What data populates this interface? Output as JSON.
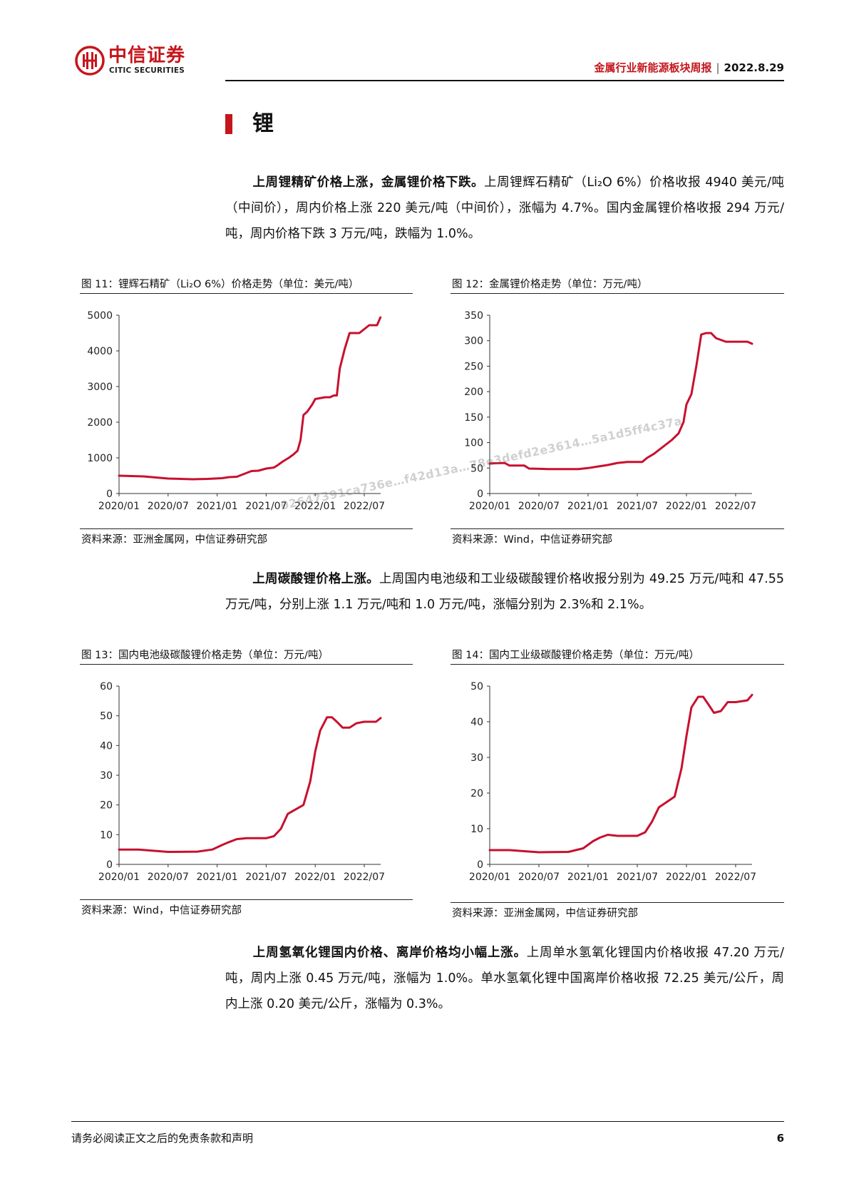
{
  "header": {
    "logo_cn": "中信证券",
    "logo_en": "CITIC SECURITIES",
    "report_title": "金属行业新能源板块周报",
    "separator": "|",
    "date": "2022.8.29"
  },
  "section": {
    "title": "锂"
  },
  "paragraphs": [
    {
      "bold": "上周锂精矿价格上涨，金属锂价格下跌。",
      "text": "上周锂辉石精矿（Li₂O 6%）价格收报 4940 美元/吨（中间价），周内价格上涨 220 美元/吨（中间价），涨幅为 4.7%。国内金属锂价格收报 294 万元/吨，周内价格下跌 3 万元/吨，跌幅为 1.0%。"
    },
    {
      "bold": "上周碳酸锂价格上涨。",
      "text": "上周国内电池级和工业级碳酸锂价格收报分别为 49.25 万元/吨和 47.55 万元/吨，分别上涨 1.1 万元/吨和 1.0 万元/吨，涨幅分别为 2.3%和 2.1%。"
    },
    {
      "bold": "上周氢氧化锂国内价格、离岸价格均小幅上涨。",
      "text": "上周单水氢氧化锂国内价格收报 47.20 万元/吨，周内上涨 0.45 万元/吨，涨幅为 1.0%。单水氢氧化锂中国离岸价格收报 72.25 美元/公斤，周内上涨 0.20 美元/公斤，涨幅为 0.3%。"
    }
  ],
  "figures": [
    {
      "title": "图 11：锂辉石精矿（Li₂O 6%）价格走势（单位：美元/吨）",
      "source": "资料来源：亚洲金属网，中信证券研究部"
    },
    {
      "title": "图 12：金属锂价格走势（单位：万元/吨）",
      "source": "资料来源：Wind，中信证券研究部"
    },
    {
      "title": "图 13：国内电池级碳酸锂价格走势（单位：万元/吨）",
      "source": "资料来源：Wind，中信证券研究部"
    },
    {
      "title": "图 14：国内工业级碳酸锂价格走势（单位：万元/吨）",
      "source": "资料来源：亚洲金属网，中信证券研究部"
    }
  ],
  "watermark": "02647391ca736e…f42d13a…78e3defd2e3614…5a1d5ff4c37a",
  "footer": {
    "disclaimer": "请务必阅读正文之后的免责条款和声明",
    "page": "6"
  },
  "colors": {
    "brand_red": "#c4161c",
    "line": "#c8102e"
  },
  "chart_data": [
    {
      "type": "line",
      "x_labels": [
        "2020/01",
        "2020/07",
        "2021/01",
        "2021/07",
        "2022/01",
        "2022/07"
      ],
      "y_ticks": [
        0,
        1000,
        2000,
        3000,
        4000,
        5000
      ],
      "ylim": [
        0,
        5000
      ],
      "xlim": [
        2020.0,
        2022.667
      ],
      "series": [
        {
          "x": [
            2020.0,
            2020.25,
            2020.5,
            2020.75,
            2020.9,
            2021.05,
            2021.12,
            2021.2,
            2021.35,
            2021.42,
            2021.5,
            2021.58,
            2021.62,
            2021.67,
            2021.73,
            2021.78,
            2021.82,
            2021.85,
            2021.88,
            2021.92,
            2021.97,
            2022.0,
            2022.1,
            2022.15,
            2022.19,
            2022.22,
            2022.25,
            2022.3,
            2022.35,
            2022.4,
            2022.45,
            2022.55,
            2022.63,
            2022.665
          ],
          "y": [
            500,
            480,
            420,
            400,
            410,
            430,
            460,
            470,
            630,
            640,
            700,
            730,
            800,
            900,
            1000,
            1100,
            1200,
            1500,
            2200,
            2300,
            2500,
            2650,
            2700,
            2700,
            2750,
            2750,
            3500,
            4050,
            4500,
            4500,
            4500,
            4720,
            4720,
            4940
          ]
        }
      ]
    },
    {
      "type": "line",
      "x_labels": [
        "2020/01",
        "2020/07",
        "2021/01",
        "2021/07",
        "2022/01",
        "2022/07"
      ],
      "y_ticks": [
        0,
        50,
        100,
        150,
        200,
        250,
        300,
        350
      ],
      "ylim": [
        0,
        350
      ],
      "xlim": [
        2020.0,
        2022.667
      ],
      "series": [
        {
          "x": [
            2020.0,
            2020.15,
            2020.2,
            2020.35,
            2020.4,
            2020.6,
            2020.9,
            2021.0,
            2021.1,
            2021.2,
            2021.3,
            2021.4,
            2021.55,
            2021.6,
            2021.67,
            2021.75,
            2021.85,
            2021.92,
            2021.97,
            2022.0,
            2022.05,
            2022.1,
            2022.15,
            2022.2,
            2022.25,
            2022.3,
            2022.4,
            2022.5,
            2022.62,
            2022.667
          ],
          "y": [
            59,
            60,
            55,
            55,
            49,
            48,
            48,
            50,
            53,
            56,
            60,
            62,
            62,
            70,
            78,
            90,
            105,
            118,
            140,
            175,
            195,
            250,
            312,
            315,
            315,
            305,
            298,
            298,
            298,
            294
          ]
        }
      ]
    },
    {
      "type": "line",
      "x_labels": [
        "2020/01",
        "2020/07",
        "2021/01",
        "2021/07",
        "2022/01",
        "2022/07"
      ],
      "y_ticks": [
        0,
        10,
        20,
        30,
        40,
        50,
        60
      ],
      "ylim": [
        0,
        60
      ],
      "xlim": [
        2020.0,
        2022.667
      ],
      "series": [
        {
          "x": [
            2020.0,
            2020.2,
            2020.5,
            2020.8,
            2020.95,
            2021.05,
            2021.12,
            2021.2,
            2021.3,
            2021.5,
            2021.58,
            2021.65,
            2021.72,
            2021.8,
            2021.88,
            2021.95,
            2022.0,
            2022.05,
            2022.12,
            2022.17,
            2022.22,
            2022.28,
            2022.35,
            2022.42,
            2022.5,
            2022.62,
            2022.667
          ],
          "y": [
            5.0,
            5.0,
            4.2,
            4.3,
            5.0,
            6.5,
            7.5,
            8.5,
            8.8,
            8.8,
            9.5,
            12,
            17,
            18.5,
            20,
            28,
            38,
            45,
            49.5,
            49.5,
            48,
            46,
            46,
            47.5,
            48,
            48,
            49.25
          ]
        }
      ]
    },
    {
      "type": "line",
      "x_labels": [
        "2020/01",
        "2020/07",
        "2021/01",
        "2021/07",
        "2022/01",
        "2022/07"
      ],
      "y_ticks": [
        0,
        10,
        20,
        30,
        40,
        50
      ],
      "ylim": [
        0,
        50
      ],
      "xlim": [
        2020.0,
        2022.667
      ],
      "series": [
        {
          "x": [
            2020.0,
            2020.2,
            2020.5,
            2020.8,
            2020.95,
            2021.05,
            2021.12,
            2021.2,
            2021.3,
            2021.5,
            2021.58,
            2021.65,
            2021.72,
            2021.8,
            2021.88,
            2021.95,
            2022.0,
            2022.05,
            2022.12,
            2022.17,
            2022.22,
            2022.28,
            2022.35,
            2022.42,
            2022.5,
            2022.62,
            2022.667
          ],
          "y": [
            4.0,
            4.0,
            3.4,
            3.5,
            4.5,
            6.5,
            7.5,
            8.3,
            8.0,
            8.0,
            9.0,
            12,
            16,
            17.5,
            19,
            27,
            36,
            44,
            47,
            47,
            45,
            42.5,
            43,
            45.5,
            45.5,
            46,
            47.55
          ]
        }
      ]
    }
  ]
}
